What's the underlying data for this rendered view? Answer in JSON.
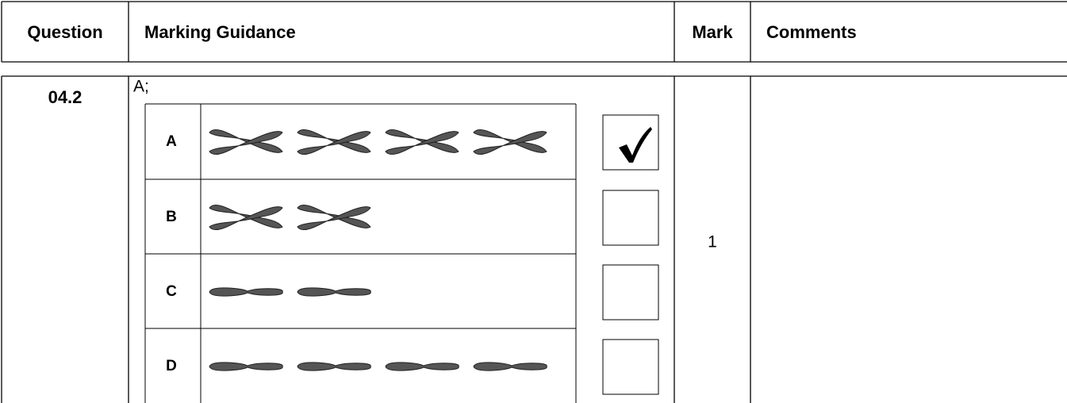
{
  "header": {
    "question": "Question",
    "marking_guidance": "Marking Guidance",
    "mark": "Mark",
    "comments": "Comments"
  },
  "rows": [
    {
      "question": "04.2",
      "answer": "A;",
      "options": [
        "A",
        "B",
        "C",
        "D"
      ],
      "mark": "1"
    }
  ]
}
